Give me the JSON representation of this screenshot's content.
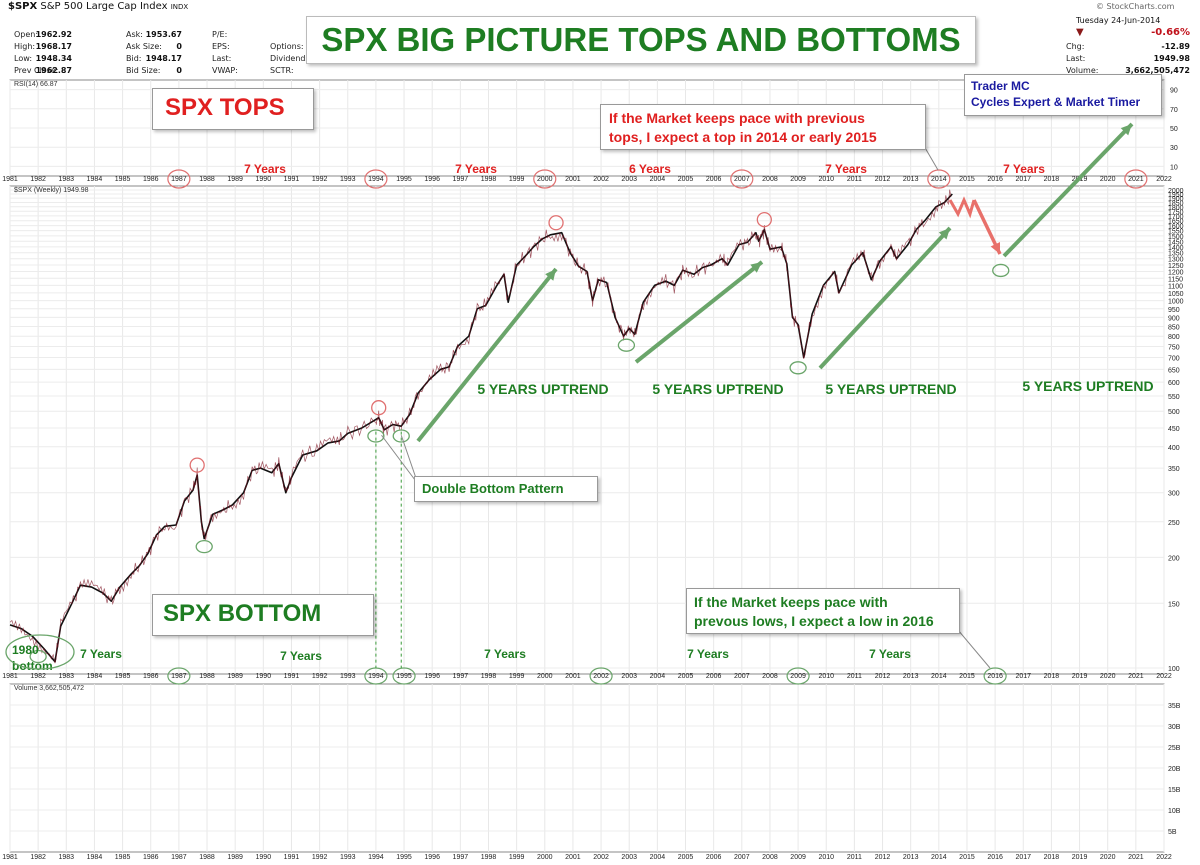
{
  "header": {
    "symbol": "$SPX",
    "name": "S&P 500 Large Cap Index",
    "exchange": "INDX",
    "fields": [
      {
        "key": "Open:",
        "value": "1962.92"
      },
      {
        "key": "High:",
        "value": "1968.17"
      },
      {
        "key": "Low:",
        "value": "1948.34"
      },
      {
        "key": "Prev Close:",
        "value": "1962.87"
      }
    ],
    "fields2": [
      {
        "key": "Ask:",
        "value": "1953.67"
      },
      {
        "key": "Ask Size:",
        "value": "0"
      },
      {
        "key": "Bid:",
        "value": "1948.17"
      },
      {
        "key": "Bid Size:",
        "value": "0"
      }
    ],
    "fields3": [
      "P/E:",
      "EPS:",
      "Last:",
      "VWAP:"
    ],
    "fields4": [
      "Options:",
      "Dividends:",
      "SCTR:"
    ],
    "copyright": "© StockCharts.com",
    "date": "Tuesday 24-Jun-2014",
    "change_pct": "-0.66%",
    "chg_label": "Chg:",
    "chg_value": "-12.89",
    "last_label": "Last:",
    "last_value": "1949.98",
    "volume_label": "Volume:",
    "volume_value": "3,662,505,472"
  },
  "title": "SPX BIG PICTURE TOPS AND BOTTOMS",
  "rsi_label": "RSI(14) 66.87",
  "price_label": "$SPX (Weekly) 1949.98",
  "volume_panel_label": "Volume 3,662,505,472",
  "colors": {
    "green": "#1e7d22",
    "red": "#e02020",
    "arrow_green": "#6aa56a",
    "arrow_red": "#e8706a",
    "navy": "#1a1aa0"
  },
  "annotations": {
    "spx_tops": "SPX TOPS",
    "spx_bottom": "SPX BOTTOM",
    "top_callout_line1": "If the Market keeps pace with previous",
    "top_callout_line2": "tops, I expect a top in 2014 or early 2015",
    "bottom_callout_line1": "If the Market keeps pace with",
    "bottom_callout_line2": "prevous lows, I expect a low in 2016",
    "trader_line1": "Trader MC",
    "trader_line2": "Cycles Expert & Market Timer",
    "double_bottom": "Double Bottom Pattern",
    "bottom_1980_line1": "1980",
    "bottom_1980_line2": "bottom",
    "uptrend_label": "5 YEARS UPTREND"
  },
  "chart_data": {
    "type": "line",
    "x_range": [
      1981,
      2022
    ],
    "years": [
      "1981",
      "1982",
      "1983",
      "1984",
      "1985",
      "1986",
      "1987",
      "1988",
      "1989",
      "1990",
      "1991",
      "1992",
      "1993",
      "1994",
      "1995",
      "1996",
      "1997",
      "1998",
      "1999",
      "2000",
      "2001",
      "2002",
      "2003",
      "2004",
      "2005",
      "2006",
      "2007",
      "2008",
      "2009",
      "2010",
      "2011",
      "2012",
      "2013",
      "2014",
      "2015",
      "2016",
      "2017",
      "2018",
      "2019",
      "2020",
      "2021",
      "2022"
    ],
    "price_ticks": [
      "2000",
      "1950",
      "1900",
      "1850",
      "1800",
      "1750",
      "1700",
      "1650",
      "1600",
      "1550",
      "1500",
      "1450",
      "1400",
      "1350",
      "1300",
      "1250",
      "1200",
      "1150",
      "1100",
      "1050",
      "1000",
      "950",
      "900",
      "850",
      "800",
      "750",
      "700",
      "650",
      "600",
      "550",
      "500",
      "450",
      "400",
      "350",
      "300",
      "250",
      "200",
      "150",
      "100"
    ],
    "price_scale": "log",
    "ylim": [
      100,
      2000
    ],
    "rsi_ticks": [
      "90",
      "70",
      "50",
      "30",
      "10"
    ],
    "volume_ticks": [
      "35B",
      "30B",
      "25B",
      "20B",
      "15B",
      "10B",
      "5B"
    ],
    "series": [
      {
        "points": [
          [
            1981.0,
            131
          ],
          [
            1981.4,
            128
          ],
          [
            1981.8,
            122
          ],
          [
            1982.2,
            113
          ],
          [
            1982.6,
            104
          ],
          [
            1982.8,
            130
          ],
          [
            1983.2,
            150
          ],
          [
            1983.5,
            168
          ],
          [
            1983.9,
            166
          ],
          [
            1984.3,
            160
          ],
          [
            1984.6,
            152
          ],
          [
            1984.9,
            166
          ],
          [
            1985.3,
            180
          ],
          [
            1985.6,
            190
          ],
          [
            1985.9,
            205
          ],
          [
            1986.2,
            230
          ],
          [
            1986.5,
            243
          ],
          [
            1986.9,
            245
          ],
          [
            1987.2,
            285
          ],
          [
            1987.5,
            305
          ],
          [
            1987.65,
            335
          ],
          [
            1987.8,
            250
          ],
          [
            1987.9,
            225
          ],
          [
            1988.2,
            262
          ],
          [
            1988.6,
            270
          ],
          [
            1988.9,
            278
          ],
          [
            1989.3,
            300
          ],
          [
            1989.6,
            345
          ],
          [
            1989.9,
            350
          ],
          [
            1990.3,
            340
          ],
          [
            1990.55,
            360
          ],
          [
            1990.8,
            300
          ],
          [
            1991.0,
            330
          ],
          [
            1991.4,
            380
          ],
          [
            1991.9,
            390
          ],
          [
            1992.3,
            410
          ],
          [
            1992.7,
            415
          ],
          [
            1993.0,
            435
          ],
          [
            1993.5,
            450
          ],
          [
            1994.0,
            475
          ],
          [
            1994.1,
            480
          ],
          [
            1994.3,
            445
          ],
          [
            1994.6,
            460
          ],
          [
            1994.9,
            455
          ],
          [
            1995.2,
            490
          ],
          [
            1995.5,
            560
          ],
          [
            1995.9,
            610
          ],
          [
            1996.3,
            650
          ],
          [
            1996.6,
            660
          ],
          [
            1996.9,
            750
          ],
          [
            1997.3,
            800
          ],
          [
            1997.6,
            950
          ],
          [
            1997.9,
            970
          ],
          [
            1998.3,
            1100
          ],
          [
            1998.55,
            1180
          ],
          [
            1998.7,
            990
          ],
          [
            1999.0,
            1250
          ],
          [
            1999.3,
            1320
          ],
          [
            1999.6,
            1400
          ],
          [
            1999.9,
            1470
          ],
          [
            2000.2,
            1510
          ],
          [
            2000.6,
            1530
          ],
          [
            2000.9,
            1350
          ],
          [
            2001.2,
            1240
          ],
          [
            2001.5,
            1200
          ],
          [
            2001.7,
            1000
          ],
          [
            2001.9,
            1140
          ],
          [
            2002.2,
            1120
          ],
          [
            2002.5,
            900
          ],
          [
            2002.8,
            800
          ],
          [
            2003.0,
            840
          ],
          [
            2003.2,
            810
          ],
          [
            2003.5,
            990
          ],
          [
            2003.9,
            1100
          ],
          [
            2004.3,
            1130
          ],
          [
            2004.6,
            1100
          ],
          [
            2004.9,
            1210
          ],
          [
            2005.3,
            1180
          ],
          [
            2005.6,
            1230
          ],
          [
            2005.9,
            1250
          ],
          [
            2006.3,
            1300
          ],
          [
            2006.5,
            1250
          ],
          [
            2006.9,
            1420
          ],
          [
            2007.2,
            1440
          ],
          [
            2007.5,
            1530
          ],
          [
            2007.6,
            1450
          ],
          [
            2007.8,
            1560
          ],
          [
            2008.0,
            1380
          ],
          [
            2008.4,
            1400
          ],
          [
            2008.6,
            1260
          ],
          [
            2008.8,
            900
          ],
          [
            2009.0,
            860
          ],
          [
            2009.2,
            700
          ],
          [
            2009.5,
            920
          ],
          [
            2009.9,
            1100
          ],
          [
            2010.3,
            1200
          ],
          [
            2010.45,
            1050
          ],
          [
            2010.9,
            1250
          ],
          [
            2011.3,
            1350
          ],
          [
            2011.6,
            1140
          ],
          [
            2011.9,
            1280
          ],
          [
            2012.3,
            1400
          ],
          [
            2012.5,
            1300
          ],
          [
            2012.9,
            1420
          ],
          [
            2013.2,
            1560
          ],
          [
            2013.5,
            1650
          ],
          [
            2013.9,
            1800
          ],
          [
            2014.2,
            1850
          ],
          [
            2014.48,
            1950
          ]
        ]
      }
    ],
    "tops": [
      1987.65,
      1994.1,
      2000.4,
      2007.8
    ],
    "top_years_axis": [
      "1987",
      "1994",
      "2000",
      "2007",
      "2014",
      "2021"
    ],
    "bottom_years_axis": [
      "1987",
      "1994",
      "1995",
      "2002",
      "2009",
      "2016"
    ],
    "top_intervals": [
      "7 Years",
      "7 Years",
      "6 Years",
      "7 Years",
      "7 Years",
      "7 Years"
    ],
    "bottom_intervals": [
      "7 Years",
      "7 Years",
      "7 Years",
      "7 Years",
      "7 Years"
    ]
  }
}
